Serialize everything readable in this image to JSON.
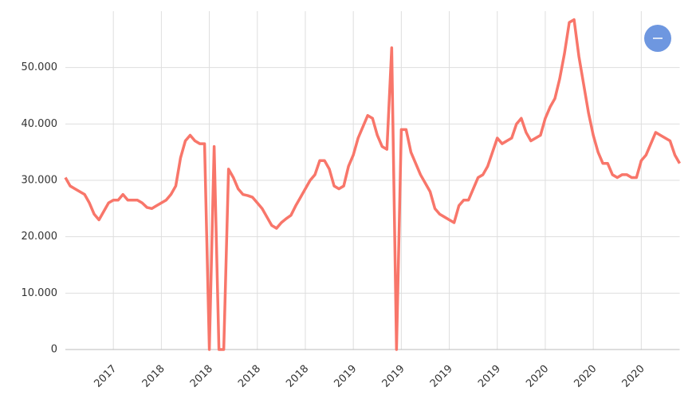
{
  "chart_data": {
    "type": "line",
    "categories": [
      null,
      null,
      null,
      null,
      null,
      null,
      null,
      null,
      null,
      null,
      "2017",
      null,
      null,
      null,
      null,
      null,
      null,
      null,
      null,
      null,
      "2018",
      null,
      null,
      null,
      null,
      null,
      null,
      null,
      null,
      null,
      "2018",
      null,
      null,
      null,
      null,
      null,
      null,
      null,
      null,
      null,
      "2018",
      null,
      null,
      null,
      null,
      null,
      null,
      null,
      null,
      null,
      "2018",
      null,
      null,
      null,
      null,
      null,
      null,
      null,
      null,
      null,
      "2019",
      null,
      null,
      null,
      null,
      null,
      null,
      null,
      null,
      null,
      "2019",
      null,
      null,
      null,
      null,
      null,
      null,
      null,
      null,
      null,
      "2019",
      null,
      null,
      null,
      null,
      null,
      null,
      null,
      null,
      null,
      "2019",
      null,
      null,
      null,
      null,
      null,
      null,
      null,
      null,
      null,
      "2020",
      null,
      null,
      null,
      null,
      null,
      null,
      null,
      null,
      null,
      "2020",
      null,
      null,
      null,
      null,
      null,
      null,
      null,
      null,
      null,
      "2020",
      null,
      null,
      null,
      null,
      null,
      null,
      null,
      null
    ],
    "values": [
      30500,
      29000,
      28500,
      28000,
      27500,
      26000,
      24000,
      23000,
      24500,
      26000,
      26500,
      26500,
      27500,
      26500,
      26500,
      26500,
      26000,
      25200,
      25000,
      25500,
      26000,
      26500,
      27500,
      29000,
      34000,
      37000,
      38000,
      37000,
      36500,
      36500,
      0,
      36000,
      0,
      0,
      32000,
      30500,
      28500,
      27500,
      27300,
      27000,
      26000,
      25000,
      23500,
      22000,
      21500,
      22500,
      23200,
      23800,
      25500,
      27000,
      28500,
      30000,
      31000,
      33500,
      33500,
      32000,
      29000,
      28500,
      29000,
      32500,
      34500,
      37500,
      39500,
      41500,
      41000,
      38000,
      36000,
      35500,
      53500,
      0,
      39000,
      39000,
      35000,
      33000,
      31000,
      29500,
      28000,
      25000,
      24000,
      23500,
      23000,
      22500,
      25500,
      26500,
      26500,
      28500,
      30500,
      31000,
      32500,
      35000,
      37500,
      36500,
      37000,
      37500,
      40000,
      41000,
      38500,
      37000,
      37500,
      38000,
      41000,
      43000,
      44500,
      48000,
      52500,
      58000,
      58500,
      52000,
      47000,
      42000,
      38000,
      35000,
      33000,
      33000,
      31000,
      30500,
      31000,
      31000,
      30500,
      30500,
      33500,
      34500,
      36500,
      38500,
      38000,
      37500,
      37000,
      34500,
      33000
    ],
    "color": "#f8766a",
    "ylim": [
      0,
      60000
    ],
    "yticks": [
      0,
      {
        "value": 10000,
        "label": "10.000"
      },
      {
        "value": 20000,
        "label": "20.000"
      },
      {
        "value": 30000,
        "label": "30.000"
      },
      {
        "value": 40000,
        "label": "40.000"
      },
      {
        "value": 50000,
        "label": "50.000"
      }
    ],
    "grid": true
  }
}
